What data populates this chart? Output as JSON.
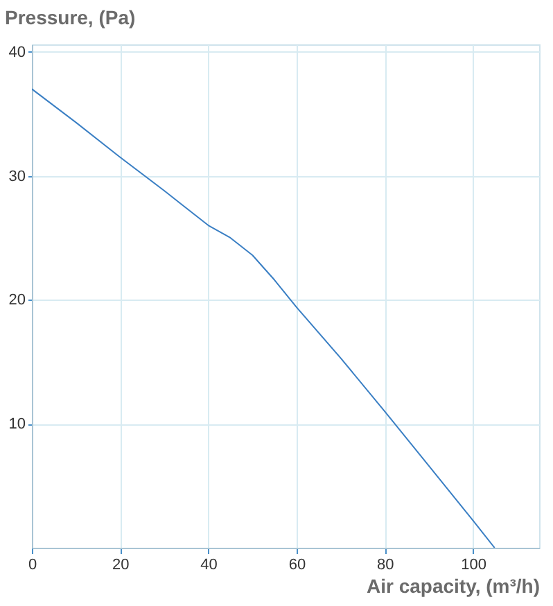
{
  "chart_data": {
    "type": "line",
    "xlabel": "Air capacity, (m³/h)",
    "ylabel": "Pressure, (Pa)",
    "x": [
      0,
      10,
      20,
      30,
      40,
      45,
      50,
      55,
      60,
      70,
      80,
      90,
      100,
      104.9
    ],
    "series": [
      {
        "color": "#3a7fc4",
        "values": [
          37.0,
          34.3,
          31.5,
          28.8,
          26.0,
          25.0,
          23.6,
          21.6,
          19.4,
          15.3,
          11.0,
          6.6,
          2.2,
          0
        ]
      }
    ],
    "xlim": [
      0,
      115
    ],
    "xticks": [
      0,
      20,
      40,
      60,
      80,
      100
    ],
    "ylim": [
      0,
      40.6
    ],
    "yticks": [
      10,
      20,
      30,
      40
    ],
    "grid": true,
    "marker": "none",
    "line_style": "solid"
  }
}
